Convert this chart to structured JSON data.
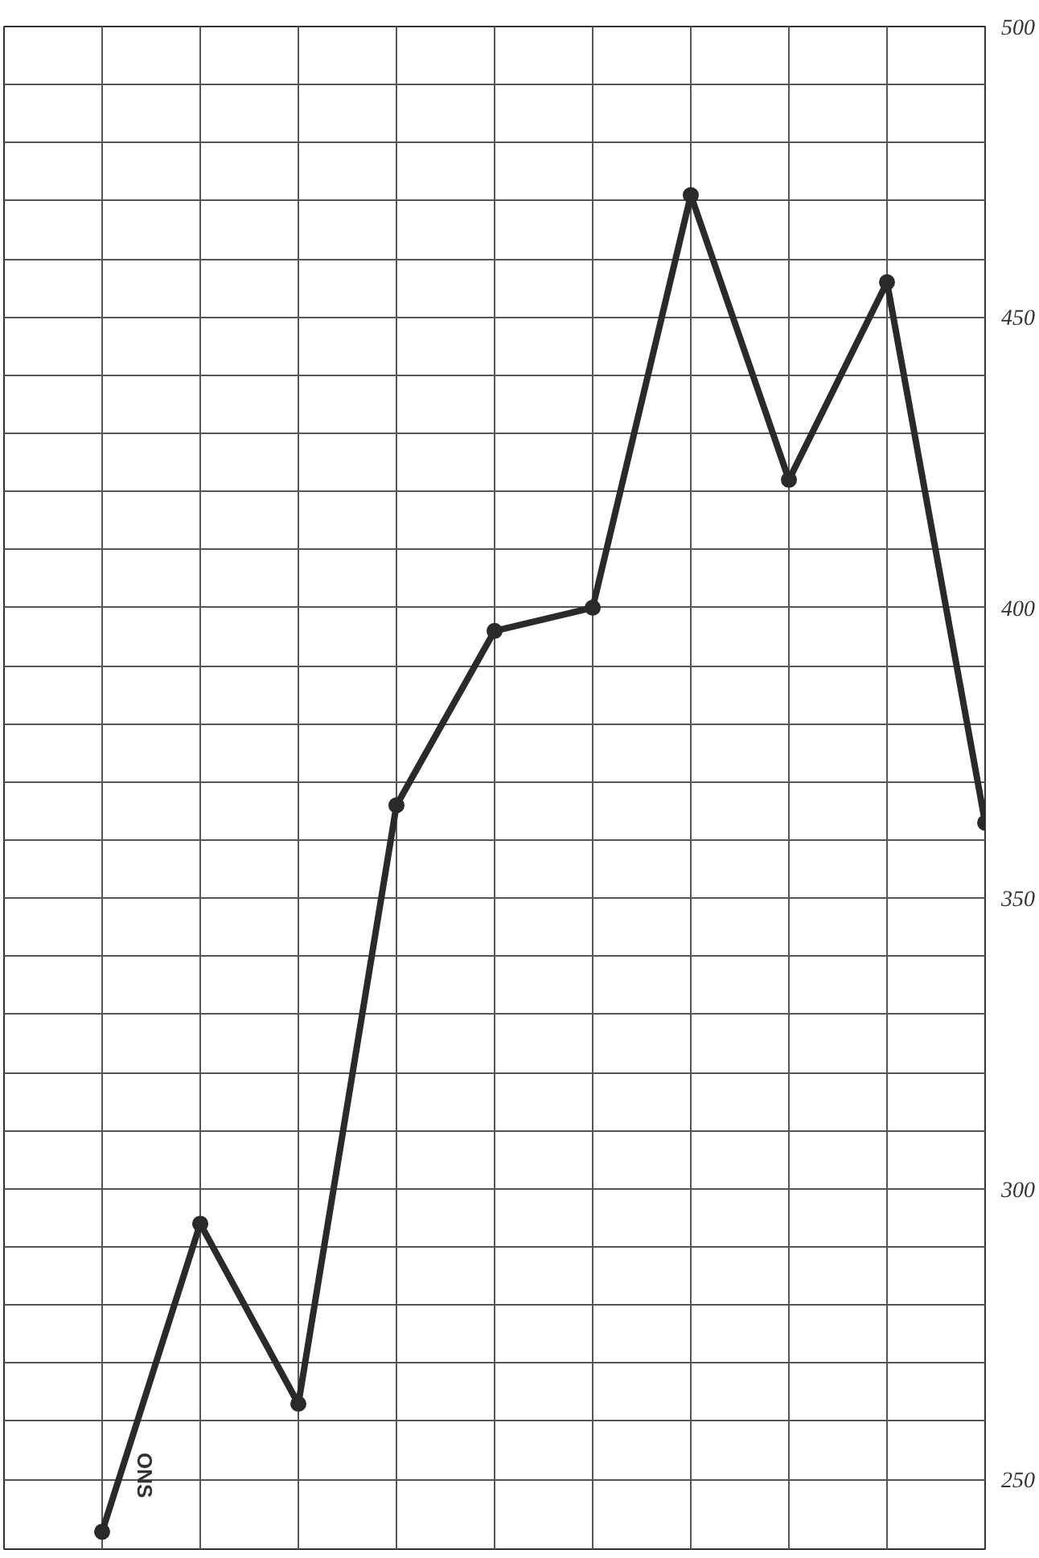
{
  "chart_data": {
    "type": "line",
    "categories": [
      null,
      null,
      null,
      null,
      null,
      null,
      null,
      null,
      null,
      null
    ],
    "series": [
      {
        "color": "#2a2a2a",
        "values": [
          241,
          294,
          263,
          366,
          396,
          400,
          471,
          422,
          456,
          363
        ]
      }
    ],
    "ylim": [
      238,
      500
    ],
    "yticks": [
      250,
      {
        "value": 260,
        "label": null
      },
      {
        "value": 270,
        "label": null
      },
      {
        "value": 280,
        "label": null
      },
      {
        "value": 290,
        "label": null
      },
      300,
      {
        "value": 310,
        "label": null
      },
      {
        "value": 320,
        "label": null
      },
      {
        "value": 330,
        "label": null
      },
      {
        "value": 340,
        "label": null
      },
      350,
      {
        "value": 360,
        "label": null
      },
      {
        "value": 370,
        "label": null
      },
      {
        "value": 380,
        "label": null
      },
      {
        "value": 390,
        "label": null
      },
      400,
      {
        "value": 410,
        "label": null
      },
      {
        "value": 420,
        "label": null
      },
      {
        "value": 430,
        "label": null
      },
      {
        "value": 440,
        "label": null
      },
      450,
      {
        "value": 460,
        "label": null
      },
      {
        "value": 470,
        "label": null
      },
      {
        "value": 480,
        "label": null
      },
      {
        "value": 490,
        "label": null
      },
      500
    ],
    "annotations": [
      "ONS"
    ],
    "grid": true,
    "marker": "circle",
    "line_style": "solid"
  }
}
